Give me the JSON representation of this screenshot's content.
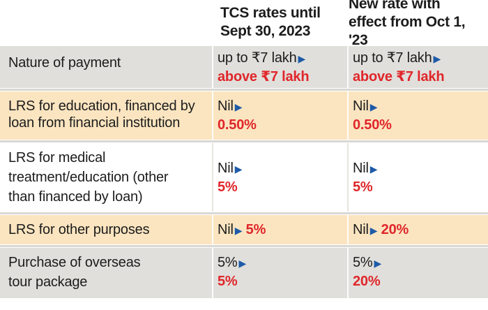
{
  "header": {
    "col1": [
      "TCS rates until",
      "Sept 30, 2023"
    ],
    "col2": [
      "New rate with",
      "effect from Oct 1, '23"
    ]
  },
  "rows": [
    {
      "label": [
        "Nature of payment"
      ],
      "old": {
        "first": "up to ₹7 lakh",
        "second": "above ₹7 lakh"
      },
      "new": {
        "first": "up to ₹7 lakh",
        "second": "above ₹7 lakh"
      }
    },
    {
      "label": [
        "LRS for education, financed by",
        "loan from financial institution"
      ],
      "old": {
        "first": "Nil",
        "second": "0.50%"
      },
      "new": {
        "first": "Nil",
        "second": "0.50%"
      }
    },
    {
      "label": [
        "LRS for medical",
        "treatment/education (other",
        "than financed by loan)"
      ],
      "old": {
        "first": "Nil",
        "second": "5%"
      },
      "new": {
        "first": "Nil",
        "second": "5%"
      }
    },
    {
      "label": [
        "LRS for other purposes"
      ],
      "old": {
        "first": "Nil",
        "second": "5%"
      },
      "new": {
        "first": "Nil",
        "second": "20%"
      }
    },
    {
      "label": [
        "Purchase of overseas",
        "tour package"
      ],
      "old": {
        "first": "5%",
        "second": "5%"
      },
      "new": {
        "first": "5%",
        "second": "20%"
      }
    }
  ],
  "arrow_glyph": "▶",
  "colors": {
    "grey_row": "#e0dfdb",
    "yellow_row": "#fbe5c0",
    "accent_red": "#e0262a",
    "arrow_blue": "#1e5aa8"
  }
}
